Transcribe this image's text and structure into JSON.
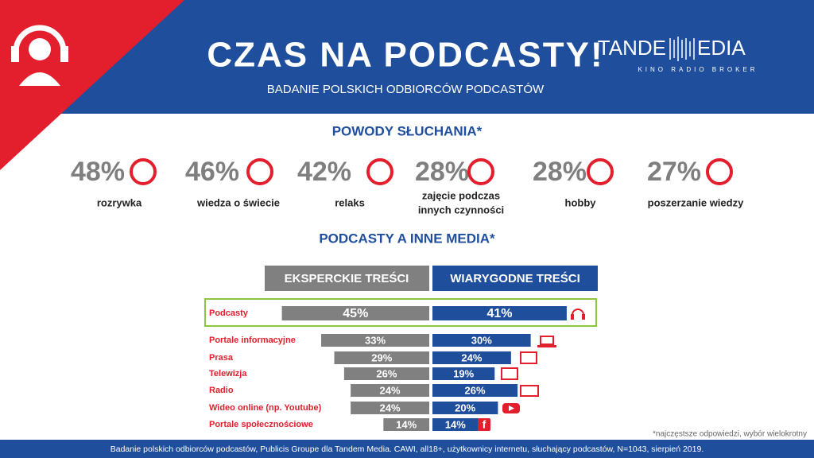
{
  "header": {
    "title": "CZAS NA PODCASTY!",
    "subtitle": "BADANIE POLSKICH ODBIORCÓW PODCASTÓW",
    "logo": {
      "left": "TANDE",
      "right": "EDIA",
      "tagline": "KINO RADIO BROKER"
    }
  },
  "reasons": {
    "title": "POWODY SŁUCHANIA*",
    "items": [
      {
        "value": "48%",
        "label": [
          "rozrywka"
        ]
      },
      {
        "value": "46%",
        "label": [
          "wiedza o świecie"
        ]
      },
      {
        "value": "42%",
        "label": [
          "relaks"
        ]
      },
      {
        "value": "28%",
        "label": [
          "zajęcie podczas",
          "innych czynności"
        ]
      },
      {
        "value": "28%",
        "label": [
          "hobby"
        ]
      },
      {
        "value": "27%",
        "label": [
          "poszerzanie wiedzy"
        ]
      }
    ]
  },
  "chart_data": {
    "type": "butterfly",
    "title": "PODCASTY A INNE MEDIA*",
    "categories": [
      "Podcasty",
      "Portale informacyjne",
      "Prasa",
      "Telewizja",
      "Radio",
      "Wideo online (np. Youtube)",
      "Portale społecznościowe"
    ],
    "series": [
      {
        "name": "EKSPERCKIE TREŚCI",
        "color": "#808080",
        "values": [
          45,
          33,
          29,
          26,
          24,
          24,
          14
        ],
        "value_labels": [
          "45%",
          "33%",
          "29%",
          "26%",
          "24%",
          "24%",
          "14%"
        ]
      },
      {
        "name": "WIARYGODNE TREŚCI",
        "color": "#1f4e9c",
        "values": [
          41,
          30,
          24,
          19,
          26,
          20,
          14
        ],
        "value_labels": [
          "41%",
          "30%",
          "24%",
          "19%",
          "26%",
          "20%",
          "14%"
        ]
      }
    ]
  },
  "footnote": "*najczęstsze odpowiedzi, wybór wielokrotny",
  "footer": "Badanie polskich odbiorców podcastów, Publicis Groupe dla Tandem Media.  CAWI, all18+, użytkownicy internetu, słuchający podcastów, N=1043, sierpień 2019."
}
